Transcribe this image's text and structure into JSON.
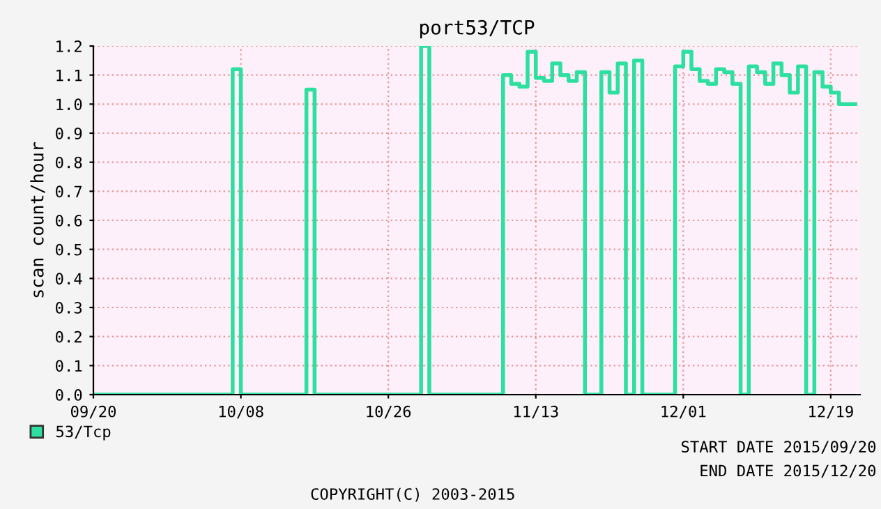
{
  "chart_data": {
    "type": "step",
    "title": "port53/TCP",
    "ylabel": "scan count/hour",
    "x": [
      "2015-09-20",
      "2015-09-21",
      "2015-09-22",
      "2015-09-23",
      "2015-09-24",
      "2015-09-25",
      "2015-09-26",
      "2015-09-27",
      "2015-09-28",
      "2015-09-29",
      "2015-09-30",
      "2015-10-01",
      "2015-10-02",
      "2015-10-03",
      "2015-10-04",
      "2015-10-05",
      "2015-10-06",
      "2015-10-07",
      "2015-10-08",
      "2015-10-09",
      "2015-10-10",
      "2015-10-11",
      "2015-10-12",
      "2015-10-13",
      "2015-10-14",
      "2015-10-15",
      "2015-10-16",
      "2015-10-17",
      "2015-10-18",
      "2015-10-19",
      "2015-10-20",
      "2015-10-21",
      "2015-10-22",
      "2015-10-23",
      "2015-10-24",
      "2015-10-25",
      "2015-10-26",
      "2015-10-27",
      "2015-10-28",
      "2015-10-29",
      "2015-10-30",
      "2015-10-31",
      "2015-11-01",
      "2015-11-02",
      "2015-11-03",
      "2015-11-04",
      "2015-11-05",
      "2015-11-06",
      "2015-11-07",
      "2015-11-08",
      "2015-11-09",
      "2015-11-10",
      "2015-11-11",
      "2015-11-12",
      "2015-11-13",
      "2015-11-14",
      "2015-11-15",
      "2015-11-16",
      "2015-11-17",
      "2015-11-18",
      "2015-11-19",
      "2015-11-20",
      "2015-11-21",
      "2015-11-22",
      "2015-11-23",
      "2015-11-24",
      "2015-11-25",
      "2015-11-26",
      "2015-11-27",
      "2015-11-28",
      "2015-11-29",
      "2015-11-30",
      "2015-12-01",
      "2015-12-02",
      "2015-12-03",
      "2015-12-04",
      "2015-12-05",
      "2015-12-06",
      "2015-12-07",
      "2015-12-08",
      "2015-12-09",
      "2015-12-10",
      "2015-12-11",
      "2015-12-12",
      "2015-12-13",
      "2015-12-14",
      "2015-12-15",
      "2015-12-16",
      "2015-12-17",
      "2015-12-18",
      "2015-12-19",
      "2015-12-20",
      "2015-12-21",
      "2015-12-22"
    ],
    "series": [
      {
        "name": "53/Tcp",
        "color": "#2ee0a0",
        "values": [
          0,
          0,
          0,
          0,
          0,
          0,
          0,
          0,
          0,
          0,
          0,
          0,
          0,
          0,
          0,
          0,
          0,
          1.12,
          0,
          0,
          0,
          0,
          0,
          0,
          0,
          0,
          1.05,
          0,
          0,
          0,
          0,
          0,
          0,
          0,
          0,
          0,
          0,
          0,
          0,
          0,
          1.2,
          0,
          0,
          0,
          0,
          0,
          0,
          0,
          0,
          0,
          1.1,
          1.07,
          1.06,
          1.18,
          1.09,
          1.08,
          1.14,
          1.1,
          1.08,
          1.11,
          0,
          0,
          1.11,
          1.04,
          1.14,
          0,
          1.15,
          0,
          0,
          0,
          0,
          1.13,
          1.18,
          1.12,
          1.08,
          1.07,
          1.12,
          1.11,
          1.07,
          0,
          1.13,
          1.11,
          1.07,
          1.14,
          1.1,
          1.04,
          1.13,
          0,
          1.11,
          1.06,
          1.04,
          1.0,
          1.0,
          1.0
        ]
      }
    ],
    "xlim": [
      "2015-09-20",
      "2015-12-22T14:00"
    ],
    "xticks": [
      {
        "value": "2015-09-20",
        "label": "09/20"
      },
      {
        "value": "2015-10-08",
        "label": "10/08"
      },
      {
        "value": "2015-10-26",
        "label": "10/26"
      },
      {
        "value": "2015-11-13",
        "label": "11/13"
      },
      {
        "value": "2015-12-01",
        "label": "12/01"
      },
      {
        "value": "2015-12-19",
        "label": "12/19"
      }
    ],
    "ylim": [
      0,
      1.2
    ],
    "yticks": [
      {
        "value": 0,
        "label": "0.0"
      },
      {
        "value": 0.1,
        "label": "0.1"
      },
      {
        "value": 0.2,
        "label": "0.2"
      },
      {
        "value": 0.3,
        "label": "0.3"
      },
      {
        "value": 0.4,
        "label": "0.4"
      },
      {
        "value": 0.5,
        "label": "0.5"
      },
      {
        "value": 0.6,
        "label": "0.6"
      },
      {
        "value": 0.7,
        "label": "0.7"
      },
      {
        "value": 0.8,
        "label": "0.8"
      },
      {
        "value": 0.9,
        "label": "0.9"
      },
      {
        "value": 1.0,
        "label": "1.0"
      },
      {
        "value": 1.1,
        "label": "1.1"
      },
      {
        "value": 1.2,
        "label": "1.2"
      }
    ],
    "grid": true,
    "legend": "bottom left",
    "annotations": [
      "START DATE 2015/09/20",
      "END DATE 2015/12/20",
      "COPYRIGHT(C) 2003-2015"
    ]
  }
}
